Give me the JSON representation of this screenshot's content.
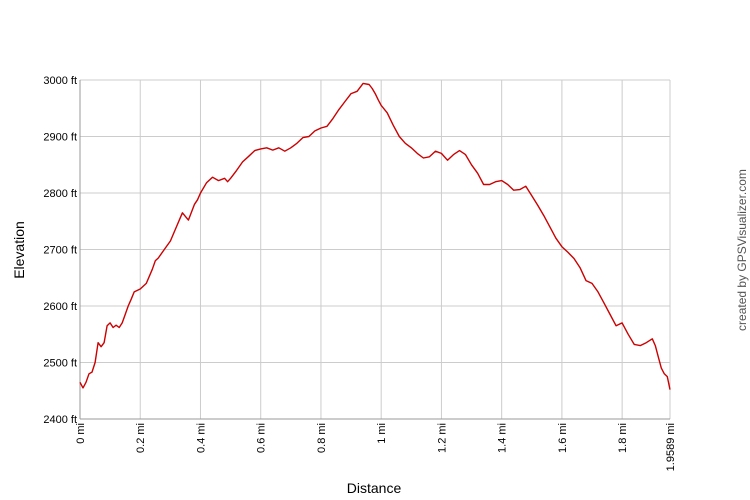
{
  "chart_data": {
    "type": "line",
    "title": "",
    "xlabel": "Distance",
    "ylabel": "Elevation",
    "xlim": [
      0,
      1.9589
    ],
    "ylim": [
      2400,
      3000
    ],
    "grid": true,
    "line_color": "#cc0000",
    "grid_color": "#cccccc",
    "x_ticks": [
      {
        "value": 0,
        "label": "0 mi"
      },
      {
        "value": 0.2,
        "label": "0.2 mi"
      },
      {
        "value": 0.4,
        "label": "0.4 mi"
      },
      {
        "value": 0.6,
        "label": "0.6 mi"
      },
      {
        "value": 0.8,
        "label": "0.8 mi"
      },
      {
        "value": 1.0,
        "label": "1 mi"
      },
      {
        "value": 1.2,
        "label": "1.2 mi"
      },
      {
        "value": 1.4,
        "label": "1.4 mi"
      },
      {
        "value": 1.6,
        "label": "1.6 mi"
      },
      {
        "value": 1.8,
        "label": "1.8 mi"
      },
      {
        "value": 1.9589,
        "label": "1.9589 mi"
      }
    ],
    "y_ticks": [
      {
        "value": 2400,
        "label": "2400 ft"
      },
      {
        "value": 2500,
        "label": "2500 ft"
      },
      {
        "value": 2600,
        "label": "2600 ft"
      },
      {
        "value": 2700,
        "label": "2700 ft"
      },
      {
        "value": 2800,
        "label": "2800 ft"
      },
      {
        "value": 2900,
        "label": "2900 ft"
      },
      {
        "value": 3000,
        "label": "3000 ft"
      }
    ],
    "x": [
      0,
      0.01,
      0.02,
      0.03,
      0.04,
      0.05,
      0.06,
      0.07,
      0.08,
      0.09,
      0.1,
      0.11,
      0.12,
      0.13,
      0.14,
      0.15,
      0.16,
      0.17,
      0.18,
      0.2,
      0.22,
      0.24,
      0.25,
      0.26,
      0.28,
      0.3,
      0.32,
      0.34,
      0.36,
      0.38,
      0.39,
      0.4,
      0.42,
      0.44,
      0.46,
      0.48,
      0.49,
      0.5,
      0.52,
      0.54,
      0.56,
      0.58,
      0.6,
      0.62,
      0.64,
      0.66,
      0.68,
      0.7,
      0.72,
      0.74,
      0.76,
      0.78,
      0.8,
      0.82,
      0.84,
      0.86,
      0.88,
      0.9,
      0.92,
      0.94,
      0.96,
      0.97,
      0.98,
      0.99,
      1.0,
      1.02,
      1.04,
      1.06,
      1.08,
      1.1,
      1.12,
      1.14,
      1.16,
      1.18,
      1.2,
      1.22,
      1.24,
      1.26,
      1.28,
      1.3,
      1.32,
      1.34,
      1.36,
      1.38,
      1.4,
      1.42,
      1.44,
      1.46,
      1.48,
      1.5,
      1.52,
      1.54,
      1.56,
      1.58,
      1.6,
      1.62,
      1.64,
      1.66,
      1.68,
      1.7,
      1.72,
      1.74,
      1.76,
      1.78,
      1.8,
      1.82,
      1.84,
      1.86,
      1.88,
      1.9,
      1.91,
      1.92,
      1.93,
      1.94,
      1.95,
      1.9589
    ],
    "series": [
      {
        "values": [
          2465,
          2455,
          2465,
          2480,
          2483,
          2500,
          2535,
          2528,
          2535,
          2565,
          2570,
          2562,
          2566,
          2562,
          2570,
          2585,
          2600,
          2612,
          2625,
          2630,
          2640,
          2665,
          2680,
          2685,
          2700,
          2715,
          2740,
          2765,
          2752,
          2780,
          2788,
          2800,
          2818,
          2828,
          2822,
          2826,
          2820,
          2826,
          2840,
          2855,
          2865,
          2875,
          2878,
          2880,
          2876,
          2880,
          2874,
          2880,
          2888,
          2898,
          2900,
          2910,
          2915,
          2918,
          2932,
          2948,
          2962,
          2976,
          2980,
          2994,
          2992,
          2985,
          2976,
          2965,
          2955,
          2942,
          2920,
          2900,
          2888,
          2880,
          2870,
          2862,
          2864,
          2874,
          2870,
          2858,
          2868,
          2875,
          2868,
          2850,
          2835,
          2815,
          2815,
          2820,
          2822,
          2815,
          2805,
          2806,
          2812,
          2795,
          2778,
          2760,
          2740,
          2720,
          2705,
          2695,
          2684,
          2668,
          2645,
          2640,
          2625,
          2605,
          2585,
          2565,
          2570,
          2550,
          2532,
          2530,
          2535,
          2542,
          2530,
          2510,
          2490,
          2480,
          2475,
          2452
        ]
      }
    ]
  },
  "credit": "created by GPSVisualizer.com"
}
